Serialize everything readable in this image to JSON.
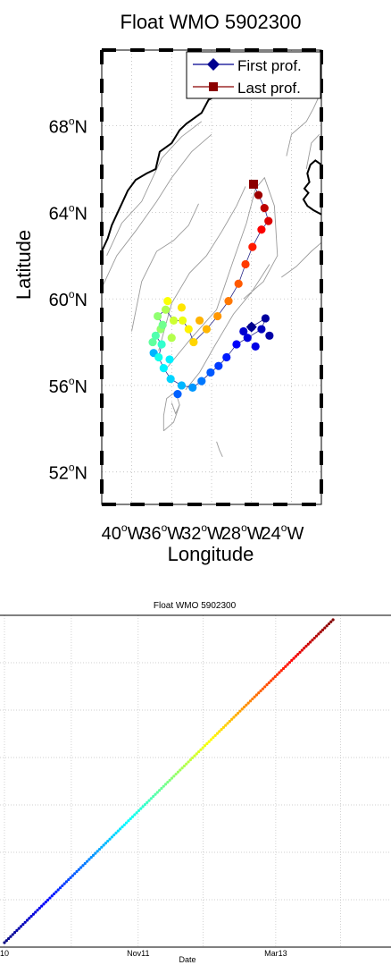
{
  "chart_data": [
    {
      "type": "scatter",
      "title": "Float WMO 5902300",
      "xlabel": "Longitude",
      "ylabel": "Latitude",
      "xlim": [
        -43,
        -21
      ],
      "ylim": [
        50.5,
        71.5
      ],
      "x_ticks": [
        {
          "v": -40,
          "deg": "40",
          "hemi": "W"
        },
        {
          "v": -36,
          "deg": "36",
          "hemi": "W"
        },
        {
          "v": -32,
          "deg": "32",
          "hemi": "W"
        },
        {
          "v": -28,
          "deg": "28",
          "hemi": "W"
        },
        {
          "v": -24,
          "deg": "24",
          "hemi": "W"
        }
      ],
      "y_ticks": [
        {
          "v": 52,
          "deg": "52",
          "hemi": "N"
        },
        {
          "v": 56,
          "deg": "56",
          "hemi": "N"
        },
        {
          "v": 60,
          "deg": "60",
          "hemi": "N"
        },
        {
          "v": 64,
          "deg": "64",
          "hemi": "N"
        },
        {
          "v": 68,
          "deg": "68",
          "hemi": "N"
        }
      ],
      "grid": true,
      "legend": {
        "placement": "top-right",
        "entries": [
          "First prof.",
          "Last prof."
        ]
      },
      "colors": {
        "first": "#00008f",
        "last": "#8b0000",
        "coast": "#000000",
        "bathymetry": "#9a9a9a"
      },
      "track": [
        {
          "lon": -28.0,
          "lat": 58.7
        },
        {
          "lon": -26.6,
          "lat": 59.1
        },
        {
          "lon": -27.0,
          "lat": 58.6
        },
        {
          "lon": -28.4,
          "lat": 58.2
        },
        {
          "lon": -29.5,
          "lat": 57.9
        },
        {
          "lon": -30.5,
          "lat": 57.3
        },
        {
          "lon": -31.3,
          "lat": 56.9
        },
        {
          "lon": -32.1,
          "lat": 56.6
        },
        {
          "lon": -33.0,
          "lat": 56.2
        },
        {
          "lon": -33.9,
          "lat": 55.9
        },
        {
          "lon": -35.0,
          "lat": 56.0
        },
        {
          "lon": -36.1,
          "lat": 56.3
        },
        {
          "lon": -36.8,
          "lat": 56.8
        },
        {
          "lon": -37.3,
          "lat": 57.3
        },
        {
          "lon": -37.0,
          "lat": 57.9
        },
        {
          "lon": -37.6,
          "lat": 58.3
        },
        {
          "lon": -36.9,
          "lat": 58.8
        },
        {
          "lon": -37.4,
          "lat": 59.2
        },
        {
          "lon": -36.6,
          "lat": 59.5
        },
        {
          "lon": -35.8,
          "lat": 59.0
        },
        {
          "lon": -34.9,
          "lat": 59.0
        },
        {
          "lon": -34.3,
          "lat": 58.6
        },
        {
          "lon": -33.8,
          "lat": 58.0
        },
        {
          "lon": -32.5,
          "lat": 58.6
        },
        {
          "lon": -31.4,
          "lat": 59.2
        },
        {
          "lon": -30.3,
          "lat": 59.9
        },
        {
          "lon": -29.3,
          "lat": 60.7
        },
        {
          "lon": -28.6,
          "lat": 61.6
        },
        {
          "lon": -27.9,
          "lat": 62.4
        },
        {
          "lon": -27.0,
          "lat": 63.2
        },
        {
          "lon": -26.3,
          "lat": 63.6
        },
        {
          "lon": -26.7,
          "lat": 64.2
        },
        {
          "lon": -27.3,
          "lat": 64.8
        },
        {
          "lon": -27.8,
          "lat": 65.3
        }
      ],
      "extra_points": [
        {
          "lon": -37.8,
          "lat": 57.5,
          "f": 0.3
        },
        {
          "lon": -36.2,
          "lat": 57.2,
          "f": 0.36
        },
        {
          "lon": -37.1,
          "lat": 58.6,
          "f": 0.52
        },
        {
          "lon": -36.0,
          "lat": 58.2,
          "f": 0.55
        },
        {
          "lon": -37.9,
          "lat": 58.0,
          "f": 0.47
        },
        {
          "lon": -36.4,
          "lat": 59.9,
          "f": 0.62
        },
        {
          "lon": -35.0,
          "lat": 59.6,
          "f": 0.65
        },
        {
          "lon": -33.2,
          "lat": 59.0,
          "f": 0.7
        },
        {
          "lon": -27.6,
          "lat": 57.8,
          "f": 0.1
        },
        {
          "lon": -28.8,
          "lat": 58.5,
          "f": 0.08
        },
        {
          "lon": -26.2,
          "lat": 58.3,
          "f": 0.04
        },
        {
          "lon": -35.4,
          "lat": 55.6,
          "f": 0.22
        }
      ]
    },
    {
      "type": "scatter",
      "title": "Float WMO 5902300",
      "xlabel": "Date",
      "x_ticks": [
        {
          "label": "10",
          "v": 0.0
        },
        {
          "label": "Nov11",
          "v": 0.35
        },
        {
          "label": "Mar13",
          "v": 0.71
        }
      ],
      "n_points": 160,
      "x_range": [
        0.0,
        0.86
      ],
      "y_range": [
        0.0,
        1.0
      ],
      "grid": true
    }
  ]
}
